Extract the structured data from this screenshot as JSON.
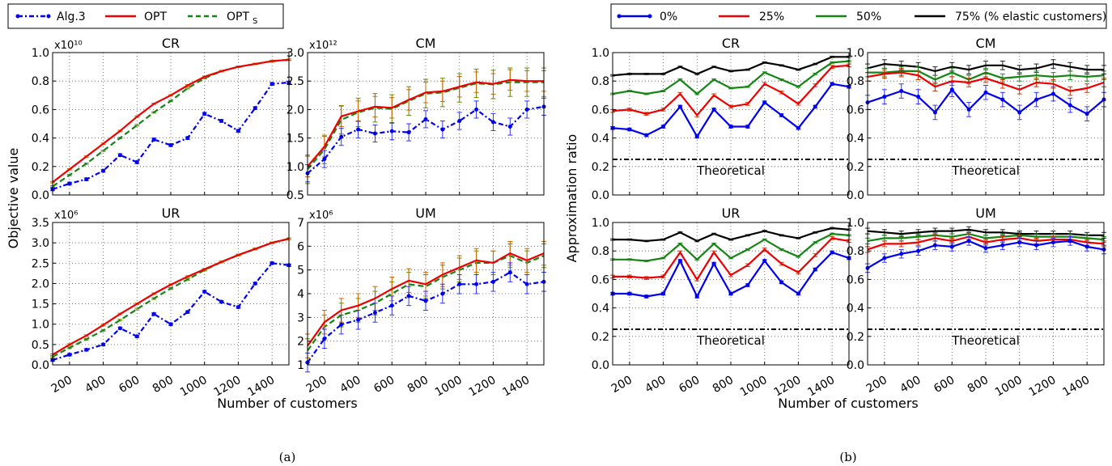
{
  "captions": {
    "a": "(a)",
    "b": "(b)"
  },
  "legend_a": [
    {
      "label": "Alg.3",
      "sub": "",
      "color": "#0000ee",
      "dash": "dashdot",
      "marker": true
    },
    {
      "label": "OPT",
      "sub": "",
      "color": "#ee0000",
      "dash": "solid",
      "marker": false
    },
    {
      "label": "OPT",
      "sub": "S",
      "color": "#138513",
      "dash": "dashed",
      "marker": false
    }
  ],
  "legend_b": [
    {
      "label": "0%",
      "color": "#0000ee",
      "marker": true
    },
    {
      "label": "25%",
      "color": "#ee0000",
      "marker": false
    },
    {
      "label": "50%",
      "color": "#138513",
      "marker": false
    },
    {
      "label": "75% (% elastic customers)",
      "color": "#000000",
      "marker": false
    }
  ],
  "shared_labels": {
    "ylabel_a": "Objective value",
    "xlabel_a": "Number of customers",
    "ylabel_b": "Approximation ratio",
    "xlabel_b": "Number of customers"
  },
  "chart_data": [
    {
      "id": "a-CR",
      "type": "line",
      "title": "CR",
      "scale_label": "x10¹⁰",
      "x": [
        100,
        200,
        300,
        400,
        500,
        600,
        700,
        800,
        900,
        1000,
        1100,
        1200,
        1300,
        1400,
        1500
      ],
      "xlim": [
        100,
        1500
      ],
      "ylim": [
        0,
        1
      ],
      "xticks": [
        200,
        400,
        600,
        800,
        1000,
        1200,
        1400
      ],
      "yticks": [
        0,
        0.2,
        0.4,
        0.6,
        0.8,
        1.0
      ],
      "ytick_labels": [
        "0.0",
        "0.2",
        "0.4",
        "0.6",
        "0.8",
        "1.0"
      ],
      "show_xticks": false,
      "series": [
        {
          "name": "Alg.3",
          "values": [
            0.04,
            0.08,
            0.11,
            0.17,
            0.28,
            0.23,
            0.39,
            0.35,
            0.4,
            0.57,
            0.52,
            0.45,
            0.61,
            0.78,
            0.79
          ],
          "err": 0.01
        },
        {
          "name": "OPT",
          "values": [
            0.09,
            0.18,
            0.27,
            0.36,
            0.45,
            0.55,
            0.64,
            0.7,
            0.77,
            0.83,
            0.87,
            0.9,
            0.92,
            0.94,
            0.95
          ],
          "err": 0.005
        },
        {
          "name": "OPT_S",
          "values": [
            0.06,
            0.14,
            0.22,
            0.31,
            0.4,
            0.49,
            0.58,
            0.66,
            0.75,
            0.82,
            0.87,
            0.9,
            0.92,
            0.94,
            0.95
          ],
          "err": 0.005
        }
      ]
    },
    {
      "id": "a-CM",
      "type": "line",
      "title": "CM",
      "scale_label": "x10¹²",
      "x": [
        100,
        200,
        300,
        400,
        500,
        600,
        700,
        800,
        900,
        1000,
        1100,
        1200,
        1300,
        1400,
        1500
      ],
      "xlim": [
        100,
        1500
      ],
      "ylim": [
        0.5,
        3
      ],
      "xticks": [
        200,
        400,
        600,
        800,
        1000,
        1200,
        1400
      ],
      "yticks": [
        0.5,
        1.0,
        1.5,
        2.0,
        2.5,
        3.0
      ],
      "ytick_labels": [
        "0.5",
        "1.0",
        "1.5",
        "2.0",
        "2.5",
        "3.0"
      ],
      "show_xticks": false,
      "series": [
        {
          "name": "Alg.3",
          "values": [
            0.88,
            1.13,
            1.52,
            1.65,
            1.58,
            1.62,
            1.6,
            1.83,
            1.65,
            1.8,
            2.0,
            1.78,
            1.7,
            2.0,
            2.05
          ],
          "err": 0.15
        },
        {
          "name": "OPT",
          "values": [
            1.0,
            1.35,
            1.88,
            1.97,
            2.05,
            2.03,
            2.17,
            2.3,
            2.32,
            2.4,
            2.48,
            2.45,
            2.52,
            2.5,
            2.5
          ],
          "err": 0.18
        },
        {
          "name": "OPT_S",
          "values": [
            0.95,
            1.3,
            1.82,
            1.95,
            2.03,
            2.01,
            2.15,
            2.28,
            2.3,
            2.38,
            2.46,
            2.44,
            2.48,
            2.48,
            2.48
          ],
          "err": 0.25
        }
      ]
    },
    {
      "id": "a-UR",
      "type": "line",
      "title": "UR",
      "scale_label": "x10⁶",
      "x": [
        100,
        200,
        300,
        400,
        500,
        600,
        700,
        800,
        900,
        1000,
        1100,
        1200,
        1300,
        1400,
        1500
      ],
      "xlim": [
        100,
        1500
      ],
      "ylim": [
        0,
        3.5
      ],
      "xticks": [
        200,
        400,
        600,
        800,
        1000,
        1200,
        1400
      ],
      "yticks": [
        0,
        0.5,
        1.0,
        1.5,
        2.0,
        2.5,
        3.0,
        3.5
      ],
      "ytick_labels": [
        "0.0",
        "0.5",
        "1.0",
        "1.5",
        "2.0",
        "2.5",
        "3.0",
        "3.5"
      ],
      "xtick_labels": [
        "200",
        "400",
        "600",
        "800",
        "1000",
        "1200",
        "1400"
      ],
      "show_xticks": true,
      "series": [
        {
          "name": "Alg.3",
          "values": [
            0.12,
            0.25,
            0.37,
            0.5,
            0.9,
            0.7,
            1.25,
            1.0,
            1.3,
            1.8,
            1.55,
            1.42,
            2.0,
            2.5,
            2.45
          ],
          "err": 0.03
        },
        {
          "name": "OPT",
          "values": [
            0.25,
            0.5,
            0.72,
            0.98,
            1.25,
            1.5,
            1.75,
            1.97,
            2.17,
            2.35,
            2.53,
            2.7,
            2.85,
            3.0,
            3.1
          ],
          "err": 0.02
        },
        {
          "name": "OPT_S",
          "values": [
            0.2,
            0.42,
            0.63,
            0.85,
            1.1,
            1.37,
            1.63,
            1.88,
            2.1,
            2.33,
            2.53,
            2.7,
            2.85,
            3.0,
            3.1
          ],
          "err": 0.02
        }
      ]
    },
    {
      "id": "a-UM",
      "type": "line",
      "title": "UM",
      "scale_label": "x10⁶",
      "x": [
        100,
        200,
        300,
        400,
        500,
        600,
        700,
        800,
        900,
        1000,
        1100,
        1200,
        1300,
        1400,
        1500
      ],
      "xlim": [
        100,
        1500
      ],
      "ylim": [
        1,
        7
      ],
      "xticks": [
        200,
        400,
        600,
        800,
        1000,
        1200,
        1400
      ],
      "yticks": [
        1,
        2,
        3,
        4,
        5,
        6,
        7
      ],
      "ytick_labels": [
        "1",
        "2",
        "3",
        "4",
        "5",
        "6",
        "7"
      ],
      "xtick_labels": [
        "200",
        "400",
        "600",
        "800",
        "1000",
        "1200",
        "1400"
      ],
      "show_xticks": true,
      "series": [
        {
          "name": "Alg.3",
          "values": [
            1.1,
            2.1,
            2.7,
            2.9,
            3.2,
            3.5,
            3.9,
            3.7,
            4.0,
            4.4,
            4.4,
            4.5,
            4.9,
            4.4,
            4.5
          ],
          "err": 0.4
        },
        {
          "name": "OPT",
          "values": [
            1.8,
            2.8,
            3.3,
            3.5,
            3.8,
            4.2,
            4.55,
            4.4,
            4.8,
            5.1,
            5.4,
            5.3,
            5.7,
            5.4,
            5.7
          ],
          "err": 0.5
        },
        {
          "name": "OPT_S",
          "values": [
            1.6,
            2.6,
            3.1,
            3.3,
            3.6,
            4.0,
            4.4,
            4.3,
            4.7,
            5.0,
            5.3,
            5.3,
            5.6,
            5.3,
            5.6
          ],
          "err": 0.5
        }
      ]
    },
    {
      "id": "b-CR",
      "type": "line",
      "title": "CR",
      "theoretical_label": "Theoretical",
      "theoretical": 0.25,
      "x": [
        100,
        200,
        300,
        400,
        500,
        600,
        700,
        800,
        900,
        1000,
        1100,
        1200,
        1300,
        1400,
        1500
      ],
      "xlim": [
        100,
        1500
      ],
      "ylim": [
        0,
        1
      ],
      "xticks": [
        200,
        400,
        600,
        800,
        1000,
        1200,
        1400
      ],
      "yticks": [
        0,
        0.2,
        0.4,
        0.6,
        0.8,
        1.0
      ],
      "ytick_labels": [
        "0.0",
        "0.2",
        "0.4",
        "0.6",
        "0.8",
        "1.0"
      ],
      "show_xticks": false,
      "series": [
        {
          "name": "0%",
          "values": [
            0.47,
            0.46,
            0.42,
            0.48,
            0.62,
            0.41,
            0.6,
            0.48,
            0.48,
            0.65,
            0.56,
            0.47,
            0.62,
            0.78,
            0.76
          ],
          "err": 0.01
        },
        {
          "name": "25%",
          "values": [
            0.59,
            0.6,
            0.57,
            0.6,
            0.71,
            0.56,
            0.7,
            0.62,
            0.64,
            0.78,
            0.72,
            0.64,
            0.77,
            0.9,
            0.91
          ],
          "err": 0.01
        },
        {
          "name": "50%",
          "values": [
            0.71,
            0.73,
            0.71,
            0.73,
            0.81,
            0.71,
            0.81,
            0.75,
            0.76,
            0.86,
            0.81,
            0.76,
            0.85,
            0.93,
            0.94
          ],
          "err": 0.005
        },
        {
          "name": "75% (% elastic customers)",
          "values": [
            0.84,
            0.85,
            0.85,
            0.85,
            0.9,
            0.85,
            0.9,
            0.87,
            0.88,
            0.93,
            0.91,
            0.88,
            0.92,
            0.97,
            0.97
          ],
          "err": 0.005
        }
      ]
    },
    {
      "id": "b-CM",
      "type": "line",
      "title": "CM",
      "theoretical_label": "Theoretical",
      "theoretical": 0.25,
      "x": [
        100,
        200,
        300,
        400,
        500,
        600,
        700,
        800,
        900,
        1000,
        1100,
        1200,
        1300,
        1400,
        1500
      ],
      "xlim": [
        100,
        1500
      ],
      "ylim": [
        0,
        1
      ],
      "xticks": [
        200,
        400,
        600,
        800,
        1000,
        1200,
        1400
      ],
      "yticks": [
        0,
        0.2,
        0.4,
        0.6,
        0.8,
        1.0
      ],
      "ytick_labels": [
        "0.0",
        "0.2",
        "0.4",
        "0.6",
        "0.8",
        "1.0"
      ],
      "show_xticks": false,
      "series": [
        {
          "name": "0%",
          "values": [
            0.65,
            0.69,
            0.73,
            0.69,
            0.58,
            0.74,
            0.6,
            0.72,
            0.67,
            0.58,
            0.67,
            0.71,
            0.63,
            0.57,
            0.67
          ],
          "err": 0.05
        },
        {
          "name": "25%",
          "values": [
            0.83,
            0.85,
            0.86,
            0.84,
            0.76,
            0.8,
            0.79,
            0.82,
            0.78,
            0.74,
            0.79,
            0.78,
            0.73,
            0.75,
            0.79
          ],
          "err": 0.03
        },
        {
          "name": "50%",
          "values": [
            0.86,
            0.86,
            0.87,
            0.87,
            0.81,
            0.86,
            0.81,
            0.86,
            0.82,
            0.83,
            0.84,
            0.83,
            0.84,
            0.83,
            0.84
          ],
          "err": 0.03
        },
        {
          "name": "75% (% elastic customers)",
          "values": [
            0.89,
            0.92,
            0.91,
            0.9,
            0.87,
            0.9,
            0.88,
            0.91,
            0.91,
            0.88,
            0.89,
            0.92,
            0.9,
            0.88,
            0.88
          ],
          "err": 0.03
        }
      ]
    },
    {
      "id": "b-UR",
      "type": "line",
      "title": "UR",
      "theoretical_label": "Theoretical",
      "theoretical": 0.25,
      "x": [
        100,
        200,
        300,
        400,
        500,
        600,
        700,
        800,
        900,
        1000,
        1100,
        1200,
        1300,
        1400,
        1500
      ],
      "xlim": [
        100,
        1500
      ],
      "ylim": [
        0,
        1
      ],
      "xticks": [
        200,
        400,
        600,
        800,
        1000,
        1200,
        1400
      ],
      "yticks": [
        0,
        0.2,
        0.4,
        0.6,
        0.8,
        1.0
      ],
      "ytick_labels": [
        "0.0",
        "0.2",
        "0.4",
        "0.6",
        "0.8",
        "1.0"
      ],
      "xtick_labels": [
        "200",
        "400",
        "600",
        "800",
        "1000",
        "1200",
        "1400"
      ],
      "show_xticks": true,
      "series": [
        {
          "name": "0%",
          "values": [
            0.5,
            0.5,
            0.48,
            0.5,
            0.73,
            0.48,
            0.71,
            0.5,
            0.56,
            0.73,
            0.58,
            0.5,
            0.67,
            0.79,
            0.75
          ],
          "err": 0.01
        },
        {
          "name": "25%",
          "values": [
            0.62,
            0.62,
            0.61,
            0.62,
            0.79,
            0.6,
            0.79,
            0.63,
            0.7,
            0.81,
            0.71,
            0.65,
            0.77,
            0.89,
            0.87
          ],
          "err": 0.01
        },
        {
          "name": "50%",
          "values": [
            0.74,
            0.74,
            0.73,
            0.75,
            0.85,
            0.74,
            0.85,
            0.75,
            0.81,
            0.88,
            0.81,
            0.76,
            0.86,
            0.92,
            0.91
          ],
          "err": 0.005
        },
        {
          "name": "75% (% elastic customers)",
          "values": [
            0.88,
            0.88,
            0.87,
            0.88,
            0.93,
            0.87,
            0.92,
            0.88,
            0.91,
            0.94,
            0.91,
            0.89,
            0.93,
            0.96,
            0.95
          ],
          "err": 0.005
        }
      ]
    },
    {
      "id": "b-UM",
      "type": "line",
      "title": "UM",
      "theoretical_label": "Theoretical",
      "theoretical": 0.25,
      "x": [
        100,
        200,
        300,
        400,
        500,
        600,
        700,
        800,
        900,
        1000,
        1100,
        1200,
        1300,
        1400,
        1500
      ],
      "xlim": [
        100,
        1500
      ],
      "ylim": [
        0,
        1
      ],
      "xticks": [
        200,
        400,
        600,
        800,
        1000,
        1200,
        1400
      ],
      "yticks": [
        0,
        0.2,
        0.4,
        0.6,
        0.8,
        1.0
      ],
      "ytick_labels": [
        "0.0",
        "0.2",
        "0.4",
        "0.6",
        "0.8",
        "1.0"
      ],
      "xtick_labels": [
        "200",
        "400",
        "600",
        "800",
        "1000",
        "1200",
        "1400"
      ],
      "show_xticks": true,
      "series": [
        {
          "name": "0%",
          "values": [
            0.68,
            0.75,
            0.78,
            0.8,
            0.84,
            0.83,
            0.87,
            0.82,
            0.84,
            0.86,
            0.84,
            0.86,
            0.87,
            0.83,
            0.81
          ],
          "err": 0.03
        },
        {
          "name": "25%",
          "values": [
            0.81,
            0.85,
            0.85,
            0.86,
            0.89,
            0.87,
            0.9,
            0.86,
            0.88,
            0.89,
            0.87,
            0.88,
            0.88,
            0.86,
            0.85
          ],
          "err": 0.02
        },
        {
          "name": "50%",
          "values": [
            0.87,
            0.89,
            0.89,
            0.9,
            0.91,
            0.9,
            0.92,
            0.89,
            0.9,
            0.91,
            0.9,
            0.9,
            0.9,
            0.89,
            0.88
          ],
          "err": 0.02
        },
        {
          "name": "75% (% elastic customers)",
          "values": [
            0.94,
            0.93,
            0.92,
            0.93,
            0.94,
            0.94,
            0.95,
            0.93,
            0.93,
            0.92,
            0.92,
            0.92,
            0.92,
            0.91,
            0.91
          ],
          "err": 0.02
        }
      ]
    }
  ]
}
